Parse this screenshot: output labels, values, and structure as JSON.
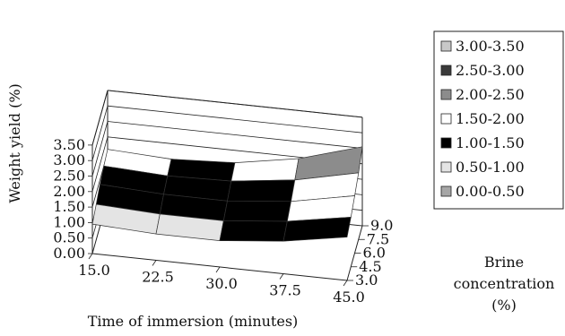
{
  "chart_data": {
    "type": "surface",
    "title": "",
    "xlabel": "Time of immersion (minutes)",
    "ylabel": "Weight yield (%)",
    "zlabel_lines": [
      "Brine",
      "concentration",
      "(%)"
    ],
    "x_ticks": [
      "15.0",
      "22.5",
      "30.0",
      "37.5",
      "45.0"
    ],
    "depth_ticks": [
      "3.0",
      "4.5",
      "6.0",
      "7.5",
      "9.0"
    ],
    "y_ticks": [
      "0.00",
      "0.50",
      "1.00",
      "1.50",
      "2.00",
      "2.50",
      "3.00",
      "3.50"
    ],
    "ylim": [
      0,
      3.5
    ],
    "grid": true,
    "legend_position": "right",
    "legend": [
      {
        "label": "3.00-3.50",
        "color": "#c8c8c8"
      },
      {
        "label": "2.50-3.00",
        "color": "#3a3a3a"
      },
      {
        "label": "2.00-2.50",
        "color": "#8c8c8c"
      },
      {
        "label": "1.50-2.00",
        "color": "#ffffff"
      },
      {
        "label": "1.00-1.50",
        "color": "#000000"
      },
      {
        "label": "0.50-1.00",
        "color": "#e4e4e4"
      },
      {
        "label": "0.00-0.50",
        "color": "#a6a6a6"
      }
    ],
    "x": [
      15.0,
      22.5,
      30.0,
      37.5,
      45.0
    ],
    "depth": [
      3.0,
      4.5,
      6.0,
      7.5,
      9.0
    ],
    "z": [
      [
        0.95,
        0.85,
        0.85,
        1.05,
        1.4
      ],
      [
        1.15,
        1.05,
        1.05,
        1.25,
        1.6
      ],
      [
        1.35,
        1.25,
        1.25,
        1.45,
        1.85
      ],
      [
        1.5,
        1.4,
        1.45,
        1.7,
        2.15
      ],
      [
        1.6,
        1.5,
        1.6,
        1.95,
        2.55
      ]
    ]
  }
}
